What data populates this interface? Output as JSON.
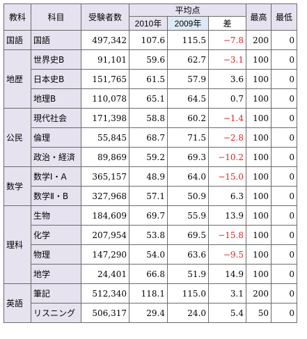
{
  "headers": {
    "category": "教科",
    "subject": "科目",
    "examinees": "受験者数",
    "average": "平均点",
    "y2010": "2010年",
    "y2009": "2009年",
    "diff": "差",
    "max": "最高",
    "min": "最低"
  },
  "categories": [
    {
      "name": "国語",
      "rows": [
        {
          "subject": "国語",
          "examinees": "497,342",
          "avg2010": "107.6",
          "avg2009": "115.5",
          "diff": "−7.8",
          "negative": true,
          "max": "200",
          "min": "0"
        }
      ]
    },
    {
      "name": "地歴",
      "rows": [
        {
          "subject": "世界史B",
          "examinees": "91,101",
          "avg2010": "59.6",
          "avg2009": "62.7",
          "diff": "−3.1",
          "negative": true,
          "max": "100",
          "min": "0"
        },
        {
          "subject": "日本史B",
          "examinees": "151,765",
          "avg2010": "61.5",
          "avg2009": "57.9",
          "diff": "3.6",
          "negative": false,
          "max": "100",
          "min": "0"
        },
        {
          "subject": "地理B",
          "examinees": "110,078",
          "avg2010": "65.1",
          "avg2009": "64.5",
          "diff": "0.7",
          "negative": false,
          "max": "100",
          "min": "0"
        }
      ]
    },
    {
      "name": "公民",
      "rows": [
        {
          "subject": "現代社会",
          "examinees": "171,398",
          "avg2010": "58.8",
          "avg2009": "60.2",
          "diff": "−1.4",
          "negative": true,
          "max": "100",
          "min": "0"
        },
        {
          "subject": "倫理",
          "examinees": "55,845",
          "avg2010": "68.7",
          "avg2009": "71.5",
          "diff": "−2.8",
          "negative": true,
          "max": "100",
          "min": "0"
        },
        {
          "subject": "政治・経済",
          "examinees": "89,869",
          "avg2010": "59.2",
          "avg2009": "69.3",
          "diff": "−10.2",
          "negative": true,
          "max": "100",
          "min": "0"
        }
      ]
    },
    {
      "name": "数学",
      "rows": [
        {
          "subject": "数学Ⅰ・A",
          "examinees": "365,157",
          "avg2010": "48.9",
          "avg2009": "64.0",
          "diff": "−15.0",
          "negative": true,
          "max": "100",
          "min": "0"
        },
        {
          "subject": "数学Ⅱ・B",
          "examinees": "327,968",
          "avg2010": "57.1",
          "avg2009": "50.9",
          "diff": "6.3",
          "negative": false,
          "max": "100",
          "min": "0"
        }
      ]
    },
    {
      "name": "理科",
      "rows": [
        {
          "subject": "生物",
          "examinees": "184,609",
          "avg2010": "69.7",
          "avg2009": "55.9",
          "diff": "13.9",
          "negative": false,
          "max": "100",
          "min": "0"
        },
        {
          "subject": "化学",
          "examinees": "207,954",
          "avg2010": "53.8",
          "avg2009": "69.5",
          "diff": "−15.8",
          "negative": true,
          "max": "100",
          "min": "0"
        },
        {
          "subject": "物理",
          "examinees": "147,290",
          "avg2010": "54.0",
          "avg2009": "63.6",
          "diff": "−9.5",
          "negative": true,
          "max": "100",
          "min": "0"
        },
        {
          "subject": "地学",
          "examinees": "24,401",
          "avg2010": "66.8",
          "avg2009": "51.9",
          "diff": "14.9",
          "negative": false,
          "max": "100",
          "min": "0"
        }
      ]
    },
    {
      "name": "英語",
      "rows": [
        {
          "subject": "筆記",
          "examinees": "512,340",
          "avg2010": "118.1",
          "avg2009": "115.0",
          "diff": "3.1",
          "negative": false,
          "max": "200",
          "min": "0"
        },
        {
          "subject": "リスニング",
          "examinees": "506,317",
          "avg2010": "29.4",
          "avg2009": "24.0",
          "diff": "5.4",
          "negative": false,
          "max": "50",
          "min": "0"
        }
      ]
    }
  ],
  "colors": {
    "header_bg": "#e7e2ef",
    "y2009_bg": "#dde9f6",
    "negative_text": "#e02020",
    "border": "#6a6a6a"
  }
}
